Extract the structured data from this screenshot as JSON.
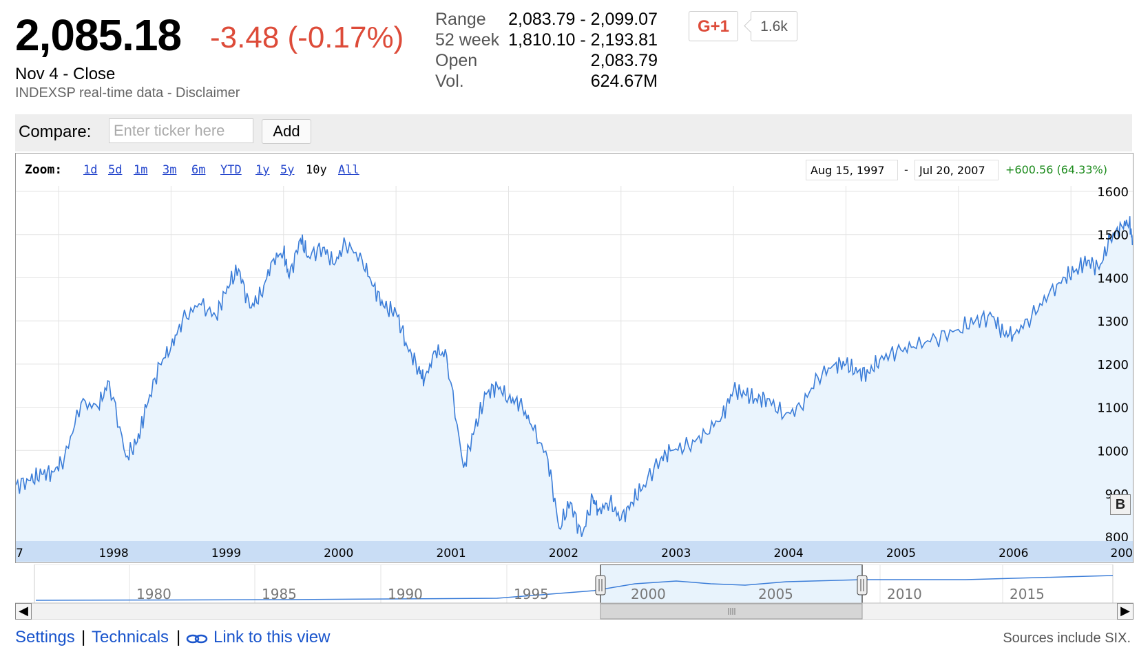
{
  "quote": {
    "price": "2,085.18",
    "change": "-3.48 (-0.17%)",
    "close_label": "Nov 4 - Close",
    "source_line": "INDEXSP real-time data - Disclaimer"
  },
  "stats": [
    {
      "label": "Range",
      "value": "2,083.79 - 2,099.07"
    },
    {
      "label": "52 week",
      "value": "1,810.10 - 2,193.81"
    },
    {
      "label": "Open",
      "value": "2,083.79"
    },
    {
      "label": "Vol.",
      "value": "624.67M"
    }
  ],
  "social": {
    "plus_label": "G+1",
    "count": "1.6k"
  },
  "compare": {
    "label": "Compare:",
    "placeholder": "Enter ticker here",
    "add_label": "Add"
  },
  "zoom": {
    "label": "Zoom:",
    "options": [
      "1d",
      "5d",
      "1m",
      "3m",
      "6m",
      "YTD",
      "1y",
      "5y",
      "10y",
      "All"
    ],
    "selected": "10y"
  },
  "range": {
    "start": "Aug 15, 1997",
    "separator": "-",
    "end": "Jul 20, 2007",
    "change": "+600.56 (64.33%)"
  },
  "colors": {
    "line": "#3b7dd8",
    "fill": "#eaf4fd",
    "negative": "#dd4b39",
    "positive": "#1a8a1a",
    "link": "#1a55cc",
    "axisband": "#c9ddf5"
  },
  "chart_data": {
    "type": "area",
    "y_ticks": [
      "1600",
      "1500",
      "1400",
      "1300",
      "1200",
      "1100",
      "1000",
      "900",
      "800"
    ],
    "ylim": [
      790,
      1600
    ],
    "x_tick_labels": [
      "7",
      "1998",
      "1999",
      "2000",
      "2001",
      "2002",
      "2003",
      "2004",
      "2005",
      "2006",
      "200"
    ],
    "x_ticks_year": [
      1997.6,
      1998,
      1999,
      2000,
      2001,
      2002,
      2003,
      2004,
      2005,
      2006,
      2007
    ],
    "xlim": [
      1997.62,
      2007.55
    ],
    "x": [
      1997.62,
      1997.75,
      1997.85,
      1997.95,
      1998.05,
      1998.2,
      1998.35,
      1998.45,
      1998.6,
      1998.7,
      1998.78,
      1998.9,
      1999.0,
      1999.1,
      1999.25,
      1999.4,
      1999.5,
      1999.6,
      1999.7,
      1999.8,
      1999.9,
      2000.0,
      2000.05,
      2000.15,
      2000.22,
      2000.35,
      2000.45,
      2000.55,
      2000.7,
      2000.8,
      2000.9,
      2001.0,
      2001.1,
      2001.2,
      2001.25,
      2001.35,
      2001.45,
      2001.6,
      2001.7,
      2001.8,
      2001.9,
      2002.0,
      2002.1,
      2002.2,
      2002.35,
      2002.45,
      2002.55,
      2002.65,
      2002.75,
      2002.8,
      2002.9,
      2003.0,
      2003.1,
      2003.2,
      2003.35,
      2003.45,
      2003.6,
      2003.75,
      2003.9,
      2004.0,
      2004.1,
      2004.2,
      2004.3,
      2004.45,
      2004.6,
      2004.75,
      2004.9,
      2005.0,
      2005.1,
      2005.2,
      2005.3,
      2005.45,
      2005.6,
      2005.8,
      2006.0,
      2006.15,
      2006.3,
      2006.4,
      2006.5,
      2006.65,
      2006.8,
      2006.95,
      2007.05,
      2007.15,
      2007.25,
      2007.35,
      2007.45,
      2007.52,
      2007.55
    ],
    "y": [
      920,
      930,
      945,
      950,
      980,
      1110,
      1100,
      1160,
      985,
      1020,
      1100,
      1200,
      1240,
      1300,
      1340,
      1310,
      1380,
      1420,
      1330,
      1360,
      1440,
      1460,
      1400,
      1490,
      1450,
      1470,
      1430,
      1480,
      1440,
      1380,
      1330,
      1320,
      1240,
      1190,
      1160,
      1230,
      1220,
      960,
      1050,
      1130,
      1150,
      1120,
      1110,
      1060,
      980,
      820,
      880,
      800,
      890,
      860,
      880,
      840,
      880,
      920,
      980,
      1000,
      1010,
      1040,
      1080,
      1140,
      1130,
      1120,
      1120,
      1080,
      1100,
      1170,
      1200,
      1200,
      1180,
      1180,
      1210,
      1230,
      1240,
      1260,
      1280,
      1300,
      1310,
      1270,
      1270,
      1310,
      1360,
      1400,
      1420,
      1440,
      1420,
      1490,
      1520,
      1530,
      1480
    ]
  },
  "navigator": {
    "labels": [
      "1980",
      "1985",
      "1990",
      "1995",
      "2000",
      "2005",
      "2010",
      "2015"
    ]
  },
  "bottom": {
    "settings": "Settings",
    "technicals": "Technicals",
    "link": "Link to this view",
    "separator": "|",
    "sources": "Sources include SIX.",
    "b_label": "B"
  }
}
